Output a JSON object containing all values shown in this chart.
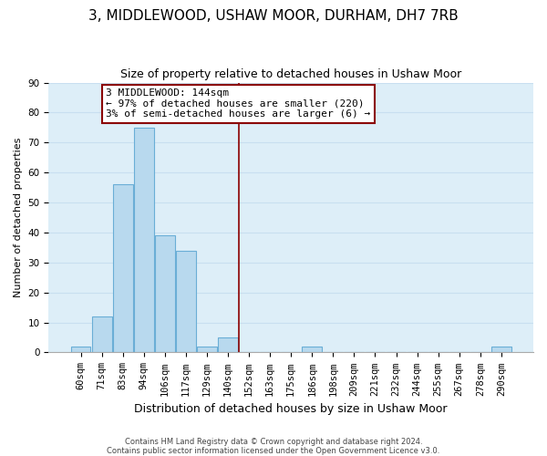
{
  "title": "3, MIDDLEWOOD, USHAW MOOR, DURHAM, DH7 7RB",
  "subtitle": "Size of property relative to detached houses in Ushaw Moor",
  "xlabel": "Distribution of detached houses by size in Ushaw Moor",
  "ylabel": "Number of detached properties",
  "bin_labels": [
    "60sqm",
    "71sqm",
    "83sqm",
    "94sqm",
    "106sqm",
    "117sqm",
    "129sqm",
    "140sqm",
    "152sqm",
    "163sqm",
    "175sqm",
    "186sqm",
    "198sqm",
    "209sqm",
    "221sqm",
    "232sqm",
    "244sqm",
    "255sqm",
    "267sqm",
    "278sqm",
    "290sqm"
  ],
  "bar_heights": [
    2,
    12,
    56,
    75,
    39,
    34,
    2,
    5,
    0,
    0,
    0,
    2,
    0,
    0,
    0,
    0,
    0,
    0,
    0,
    0,
    2
  ],
  "bar_color": "#b8d9ee",
  "bar_edge_color": "#6aaed6",
  "vline_x": 7.5,
  "vline_color": "#8b0000",
  "annotation_line1": "3 MIDDLEWOOD: 144sqm",
  "annotation_line2": "← 97% of detached houses are smaller (220)",
  "annotation_line3": "3% of semi-detached houses are larger (6) →",
  "ylim": [
    0,
    90
  ],
  "yticks": [
    0,
    10,
    20,
    30,
    40,
    50,
    60,
    70,
    80,
    90
  ],
  "grid_color": "#c8dff0",
  "background_color": "#ddeef8",
  "footer_text": "Contains HM Land Registry data © Crown copyright and database right 2024.\nContains public sector information licensed under the Open Government Licence v3.0.",
  "title_fontsize": 11,
  "subtitle_fontsize": 9,
  "xlabel_fontsize": 9,
  "ylabel_fontsize": 8,
  "tick_fontsize": 7.5,
  "annotation_fontsize": 8
}
